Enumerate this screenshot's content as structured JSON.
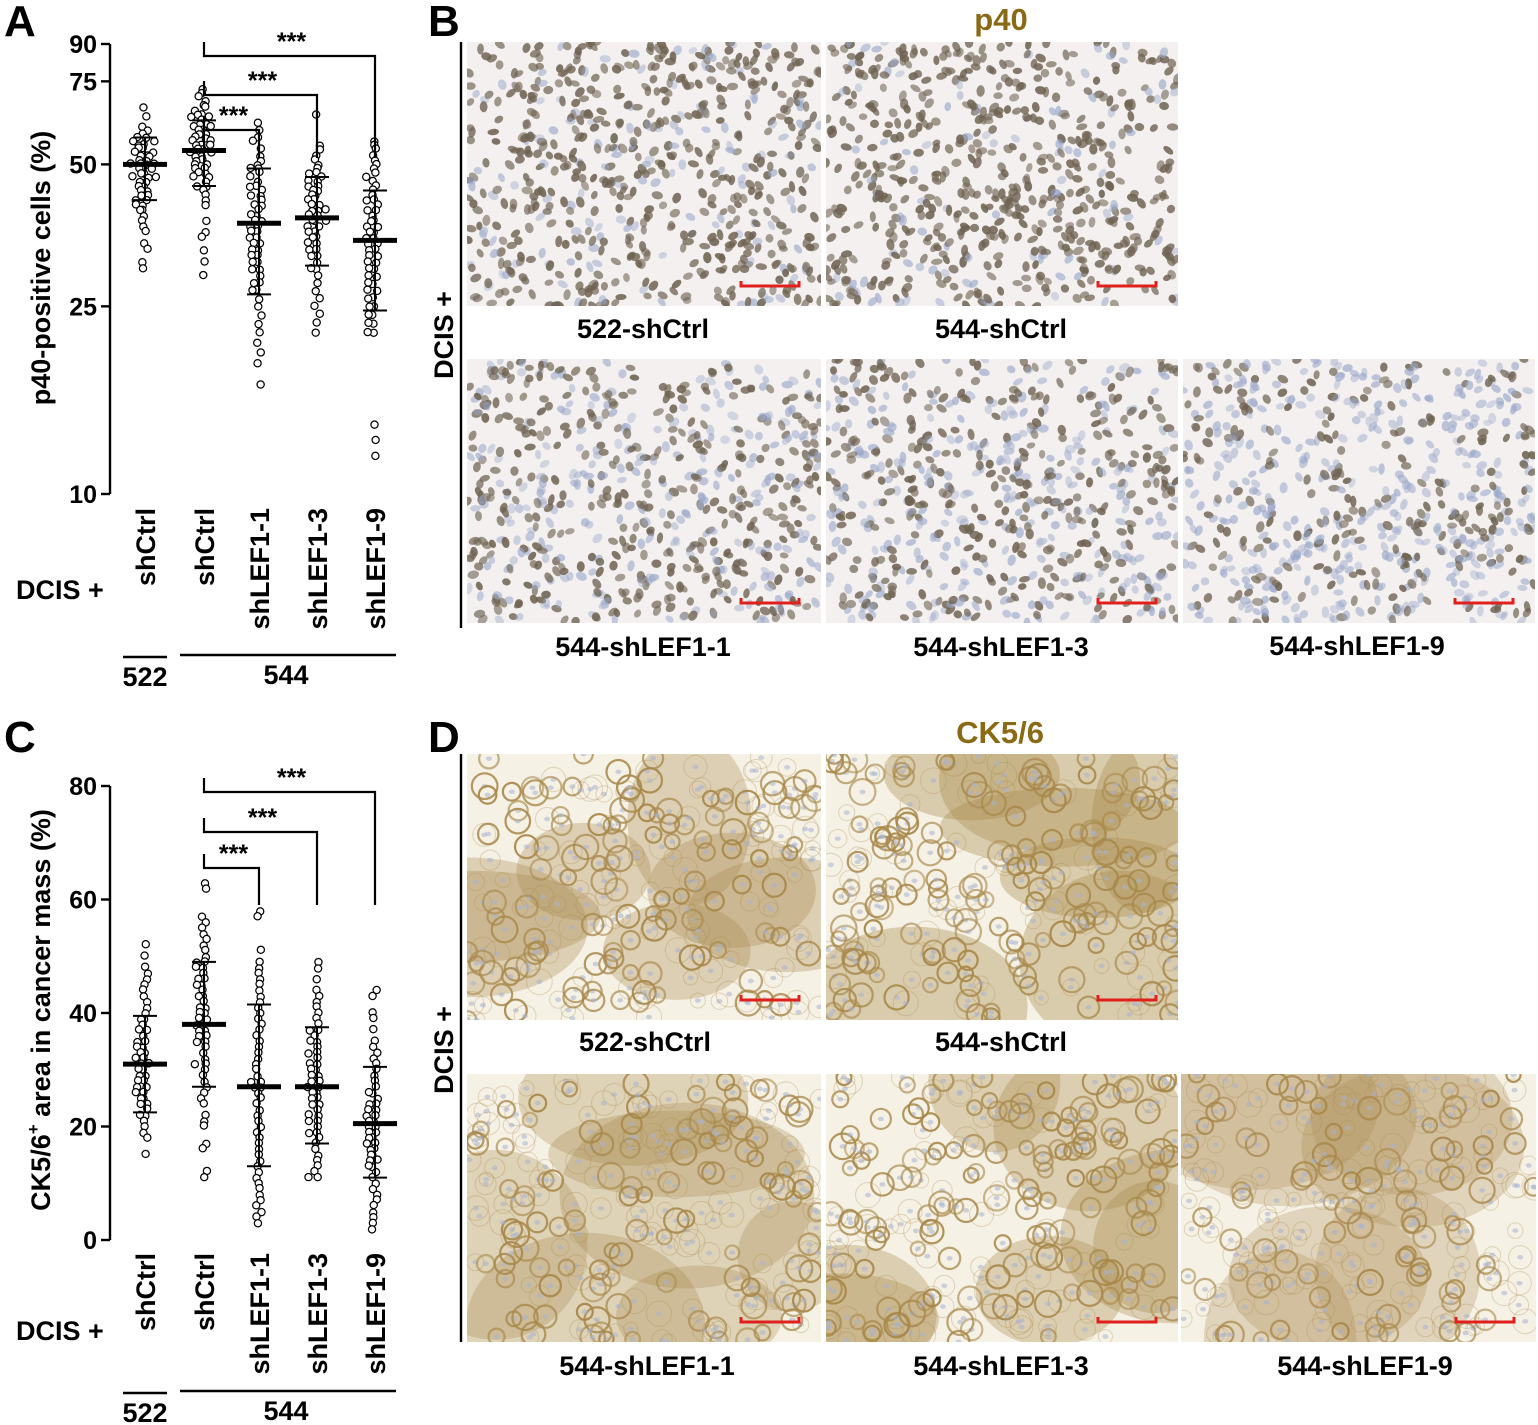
{
  "panels": {
    "A": "A",
    "B": "B",
    "C": "C",
    "D": "D"
  },
  "colors": {
    "stain_title": "#8a6a14",
    "scalebar": "#e0201c",
    "p40_background": "#f3f0ef",
    "p40_nucleus_brown": "#6f6352",
    "p40_nucleus_blue": "#98a6c9",
    "ck_background": "#f5f1e5",
    "ck_membrane": "#a8884a",
    "ck_nucleus_blue": "#a8b2cf"
  },
  "row_label": "DCIS +",
  "group_labels": {
    "left": "522",
    "right": "544"
  },
  "panel_B": {
    "stain": "p40",
    "row_label": "DCIS +",
    "images": [
      {
        "caption": "522-shCtrl",
        "level": 0.8
      },
      {
        "caption": "544-shCtrl",
        "level": 0.85
      },
      {
        "caption": "544-shLEF1-1",
        "level": 0.6
      },
      {
        "caption": "544-shLEF1-3",
        "level": 0.55
      },
      {
        "caption": "544-shLEF1-9",
        "level": 0.35
      }
    ]
  },
  "panel_D": {
    "stain": "CK5/6",
    "row_label": "DCIS +",
    "images": [
      {
        "caption": "522-shCtrl",
        "level": 0.55
      },
      {
        "caption": "544-shCtrl",
        "level": 0.7
      },
      {
        "caption": "544-shLEF1-1",
        "level": 0.45
      },
      {
        "caption": "544-shLEF1-3",
        "level": 0.6
      },
      {
        "caption": "544-shLEF1-9",
        "level": 0.35
      }
    ]
  },
  "chart_data": [
    {
      "type": "scatter",
      "panel": "A",
      "ylabel": "p40-positive cells (%)",
      "yscale": "log",
      "ylim": [
        10,
        90
      ],
      "yticks": [
        10,
        25,
        50,
        75,
        90
      ],
      "row_label": "DCIS +",
      "categories": [
        "shCtrl",
        "shCtrl",
        "shLEF1-1",
        "shLEF1-3",
        "shLEF1-9"
      ],
      "groups": [
        {
          "name": "522",
          "categories": [
            0
          ]
        },
        {
          "name": "544",
          "categories": [
            1,
            2,
            3,
            4
          ]
        }
      ],
      "series": [
        {
          "mean": 50,
          "sd_low": 42,
          "sd_high": 57,
          "values": [
            66,
            63,
            60,
            59,
            58,
            57,
            57,
            56,
            56,
            55,
            55,
            54,
            54,
            53,
            53,
            52,
            52,
            52,
            51,
            51,
            50,
            50,
            50,
            50,
            49,
            49,
            49,
            48,
            48,
            47,
            47,
            47,
            46,
            46,
            45,
            45,
            44,
            44,
            43,
            43,
            42,
            42,
            41,
            41,
            40,
            40,
            39,
            38,
            37,
            36,
            34,
            33,
            31,
            30
          ]
        },
        {
          "mean": 53.5,
          "sd_low": 45,
          "sd_high": 62,
          "values": [
            72,
            71,
            70,
            68,
            67,
            66,
            65,
            64,
            64,
            63,
            63,
            62,
            61,
            61,
            60,
            60,
            59,
            59,
            58,
            58,
            57,
            57,
            56,
            56,
            55,
            55,
            55,
            54,
            54,
            53,
            53,
            52,
            52,
            51,
            51,
            50,
            50,
            49,
            49,
            48,
            48,
            47,
            47,
            46,
            45,
            45,
            44,
            43,
            42,
            41,
            38,
            36,
            35,
            33,
            31,
            29
          ]
        },
        {
          "mean": 37.5,
          "sd_low": 26.5,
          "sd_high": 49,
          "values": [
            61,
            59,
            57,
            56,
            54,
            52,
            51,
            50,
            49,
            49,
            48,
            47,
            46,
            45,
            45,
            44,
            43,
            43,
            42,
            41,
            41,
            40,
            39,
            39,
            38,
            38,
            37,
            37,
            36,
            36,
            35,
            35,
            34,
            34,
            33,
            33,
            32,
            32,
            31,
            31,
            30,
            30,
            29,
            28,
            28,
            27,
            27,
            26,
            25,
            24,
            23,
            22,
            21,
            20,
            19,
            17
          ]
        },
        {
          "mean": 38.5,
          "sd_low": 30.5,
          "sd_high": 47,
          "values": [
            64,
            55,
            54,
            52,
            51,
            50,
            49,
            48,
            48,
            47,
            46,
            46,
            45,
            45,
            44,
            44,
            43,
            43,
            42,
            42,
            41,
            41,
            40,
            40,
            40,
            39,
            39,
            38,
            38,
            38,
            37,
            37,
            36,
            36,
            35,
            35,
            34,
            34,
            33,
            33,
            32,
            32,
            31,
            30,
            30,
            29,
            28,
            27,
            26,
            25,
            24,
            23,
            22
          ]
        },
        {
          "mean": 34.5,
          "sd_low": 24.5,
          "sd_high": 44,
          "values": [
            56,
            55,
            54,
            52,
            51,
            50,
            49,
            48,
            47,
            46,
            45,
            44,
            43,
            42,
            42,
            41,
            40,
            40,
            39,
            38,
            38,
            37,
            37,
            36,
            36,
            35,
            35,
            34,
            34,
            33,
            33,
            32,
            32,
            31,
            31,
            30,
            30,
            29,
            29,
            28,
            28,
            27,
            27,
            26,
            26,
            25,
            25,
            24,
            24,
            23,
            23,
            22,
            22,
            14,
            13,
            12
          ]
        }
      ],
      "significance": [
        {
          "from": 1,
          "to": 2,
          "label": "***"
        },
        {
          "from": 1,
          "to": 3,
          "label": "***"
        },
        {
          "from": 1,
          "to": 4,
          "label": "***"
        }
      ]
    },
    {
      "type": "scatter",
      "panel": "C",
      "ylabel_main": "CK5/6",
      "ylabel_sup": "+",
      "ylabel_rest": " area in cancer mass (%)",
      "yscale": "linear",
      "ylim": [
        0,
        80
      ],
      "yticks": [
        0,
        20,
        40,
        60,
        80
      ],
      "row_label": "DCIS +",
      "categories": [
        "shCtrl",
        "shCtrl",
        "shLEF1-1",
        "shLEF1-3",
        "shLEF1-9"
      ],
      "groups": [
        {
          "name": "522",
          "categories": [
            0
          ]
        },
        {
          "name": "544",
          "categories": [
            1,
            2,
            3,
            4
          ]
        }
      ],
      "series": [
        {
          "mean": 31,
          "sd_low": 22.5,
          "sd_high": 39.5,
          "values": [
            52,
            50,
            48,
            47,
            46,
            45,
            44,
            43,
            42,
            41,
            40,
            39,
            39,
            38,
            37,
            37,
            36,
            35,
            35,
            34,
            34,
            33,
            33,
            32,
            32,
            31,
            31,
            31,
            30,
            30,
            29,
            29,
            28,
            28,
            27,
            27,
            26,
            26,
            25,
            25,
            24,
            24,
            23,
            22,
            22,
            21,
            20,
            19,
            18,
            15
          ]
        },
        {
          "mean": 38,
          "sd_low": 27,
          "sd_high": 49,
          "values": [
            63,
            62,
            57,
            56,
            55,
            54,
            53,
            52,
            51,
            50,
            49,
            49,
            48,
            48,
            47,
            46,
            46,
            45,
            45,
            44,
            43,
            43,
            42,
            41,
            41,
            40,
            40,
            39,
            39,
            38,
            38,
            37,
            37,
            36,
            36,
            35,
            35,
            34,
            33,
            32,
            31,
            31,
            30,
            29,
            28,
            27,
            26,
            25,
            24,
            22,
            21,
            20,
            17,
            16,
            12,
            11
          ]
        },
        {
          "mean": 27,
          "sd_low": 13,
          "sd_high": 41.5,
          "values": [
            58,
            57,
            51,
            49,
            48,
            47,
            46,
            45,
            44,
            43,
            42,
            41,
            40,
            39,
            38,
            37,
            36,
            35,
            34,
            33,
            32,
            31,
            30,
            29,
            28,
            28,
            27,
            27,
            26,
            25,
            24,
            23,
            22,
            21,
            20,
            19,
            18,
            17,
            16,
            15,
            14,
            13,
            12,
            11,
            10,
            9,
            8,
            7,
            6,
            5,
            4,
            3
          ]
        },
        {
          "mean": 27,
          "sd_low": 17,
          "sd_high": 37.5,
          "values": [
            49,
            48,
            46,
            44,
            43,
            42,
            41,
            40,
            39,
            38,
            37,
            37,
            36,
            35,
            35,
            34,
            33,
            33,
            32,
            31,
            31,
            30,
            30,
            29,
            29,
            28,
            28,
            27,
            27,
            26,
            26,
            25,
            25,
            24,
            24,
            23,
            22,
            22,
            21,
            21,
            20,
            19,
            19,
            18,
            17,
            16,
            15,
            14,
            13,
            12,
            11,
            11
          ]
        },
        {
          "mean": 20.5,
          "sd_low": 11,
          "sd_high": 30.5,
          "values": [
            44,
            43,
            40,
            39,
            37,
            35,
            34,
            33,
            32,
            31,
            30,
            29,
            28,
            27,
            26,
            26,
            25,
            24,
            24,
            23,
            23,
            22,
            22,
            21,
            21,
            20,
            20,
            19,
            19,
            18,
            18,
            17,
            17,
            16,
            16,
            15,
            15,
            14,
            14,
            13,
            13,
            12,
            11,
            10,
            9,
            8,
            7,
            6,
            5,
            4,
            3,
            2
          ]
        }
      ],
      "significance": [
        {
          "from": 1,
          "to": 2,
          "label": "***"
        },
        {
          "from": 1,
          "to": 3,
          "label": "***"
        },
        {
          "from": 1,
          "to": 4,
          "label": "***"
        }
      ]
    }
  ]
}
